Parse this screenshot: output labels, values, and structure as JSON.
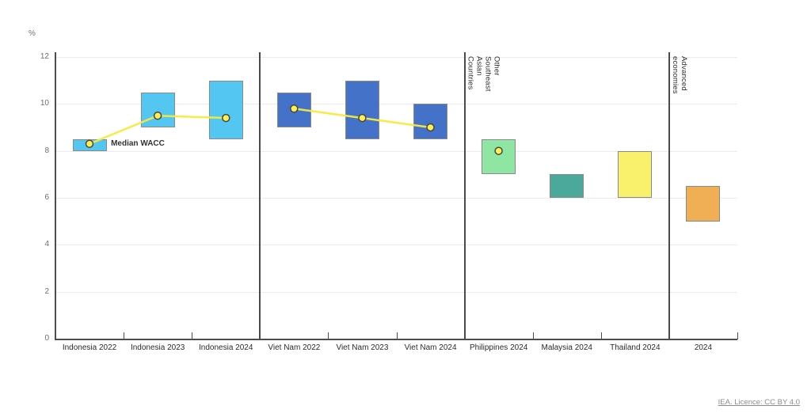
{
  "footer": {
    "licence": "IEA. Licence: CC BY 4.0"
  },
  "chart_data": {
    "type": "bar",
    "subtype": "floating-column-range",
    "title": "",
    "ylabel": "%",
    "xlabel": "",
    "ylim": [
      0,
      12
    ],
    "yticks": [
      0,
      2,
      4,
      6,
      8,
      10,
      12
    ],
    "grid": true,
    "legend_position": "none",
    "median_label": "Median WACC",
    "median_label_anchor_index": 0,
    "line_color": "#F7E93F",
    "dot_fill": "#FFF050",
    "dot_stroke": "#454545",
    "categories": [
      "Indonesia 2022",
      "Indonesia 2023",
      "Indonesia 2024",
      "Viet Nam 2022",
      "Viet Nam 2023",
      "Viet Nam 2024",
      "Philippines 2024",
      "Malaysia 2024",
      "Thailand 2024",
      "2024"
    ],
    "bars": [
      {
        "label": "Indonesia 2022",
        "low": 8.0,
        "high": 8.5,
        "median": 8.3,
        "color": "#53C6F1",
        "group": "Indonesia"
      },
      {
        "label": "Indonesia 2023",
        "low": 9.0,
        "high": 10.5,
        "median": 9.5,
        "color": "#53C6F1",
        "group": "Indonesia"
      },
      {
        "label": "Indonesia 2024",
        "low": 8.5,
        "high": 11.0,
        "median": 9.4,
        "color": "#53C6F1",
        "group": "Indonesia"
      },
      {
        "label": "Viet Nam 2022",
        "low": 9.0,
        "high": 10.5,
        "median": 9.8,
        "color": "#4472C8",
        "group": "Viet Nam"
      },
      {
        "label": "Viet Nam 2023",
        "low": 8.5,
        "high": 11.0,
        "median": 9.4,
        "color": "#4472C8",
        "group": "Viet Nam"
      },
      {
        "label": "Viet Nam 2024",
        "low": 8.5,
        "high": 10.0,
        "median": 9.0,
        "color": "#4472C8",
        "group": "Viet Nam"
      },
      {
        "label": "Philippines 2024",
        "low": 7.0,
        "high": 8.5,
        "median": 8.0,
        "color": "#8EE6A2",
        "group": "Philippines"
      },
      {
        "label": "Malaysia 2024",
        "low": 6.0,
        "high": 7.0,
        "median": null,
        "color": "#4BA99B",
        "group": "Malaysia"
      },
      {
        "label": "Thailand 2024",
        "low": 6.0,
        "high": 8.0,
        "median": null,
        "color": "#F9F06B",
        "group": "Thailand"
      },
      {
        "label": "2024",
        "low": 5.0,
        "high": 6.5,
        "median": null,
        "color": "#F0AF55",
        "group": "Advanced economies"
      }
    ],
    "separators": [
      {
        "boundary_after_index": 2,
        "label": ""
      },
      {
        "boundary_after_index": 5,
        "label": "Other Southeast Asian Countries"
      },
      {
        "boundary_after_index": 8,
        "label": "Advanced economies"
      }
    ]
  }
}
